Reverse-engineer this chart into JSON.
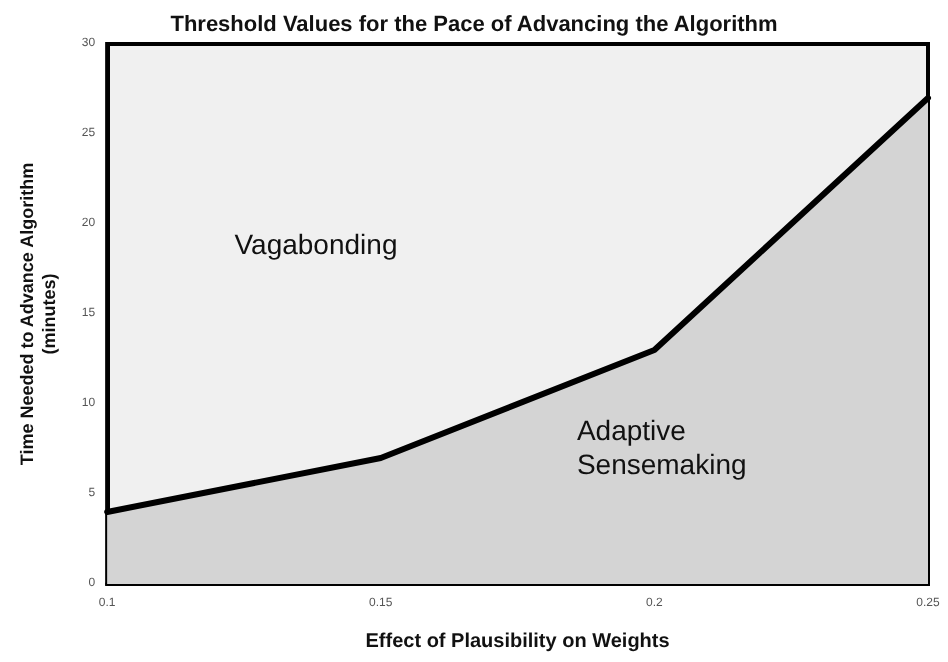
{
  "chart_data": {
    "type": "area",
    "title": "Threshold Values for the Pace of Advancing the Algorithm",
    "xlabel": "Effect of Plausibility on Weights",
    "ylabel": "Time Needed to Advance Algorithm\n(minutes)",
    "x": [
      0.1,
      0.15,
      0.2,
      0.25
    ],
    "series": [
      {
        "color": "#000000",
        "values": [
          4,
          7,
          13,
          27
        ]
      }
    ],
    "xlim": [
      0.1,
      0.25
    ],
    "xticks": [
      0.1,
      0.15,
      0.2,
      0.25
    ],
    "ylim": [
      0,
      30
    ],
    "yticks": [
      0,
      5,
      10,
      15,
      20,
      25,
      30
    ],
    "annotations": [
      "Vagabonding",
      "Adaptive Sensemaking"
    ],
    "grid": false,
    "marker": "none",
    "line_style": "solid"
  }
}
